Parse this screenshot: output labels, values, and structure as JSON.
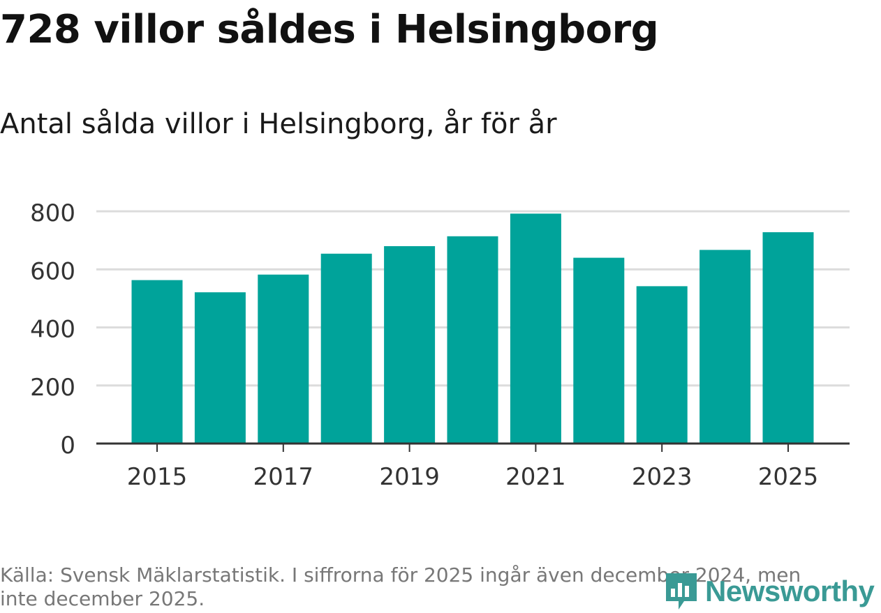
{
  "header": {
    "title": "728 villor såldes i Helsingborg",
    "subtitle": "Antal sålda villor i Helsingborg, år för år"
  },
  "footer": {
    "source": "Källa: Svensk Mäklarstatistik. I siffrorna för 2025 ingår även december 2024, men inte december 2025.",
    "logo_text": "Newsworthy"
  },
  "colors": {
    "bar": "#00a39a",
    "grid": "#dcdcdc",
    "axis": "#333333",
    "logo": "#3a9a95"
  },
  "chart_data": {
    "type": "bar",
    "title": "Antal sålda villor i Helsingborg, år för år",
    "xlabel": "",
    "ylabel": "",
    "categories": [
      "2015",
      "2016",
      "2017",
      "2018",
      "2019",
      "2020",
      "2021",
      "2022",
      "2023",
      "2024",
      "2025"
    ],
    "values": [
      563,
      521,
      582,
      654,
      680,
      714,
      792,
      640,
      542,
      667,
      728
    ],
    "x_tick_labels": [
      "2015",
      "2017",
      "2019",
      "2021",
      "2023",
      "2025"
    ],
    "y_ticks": [
      0,
      200,
      400,
      600,
      800
    ],
    "ylim": [
      0,
      800
    ],
    "grid": true,
    "legend": "none"
  }
}
